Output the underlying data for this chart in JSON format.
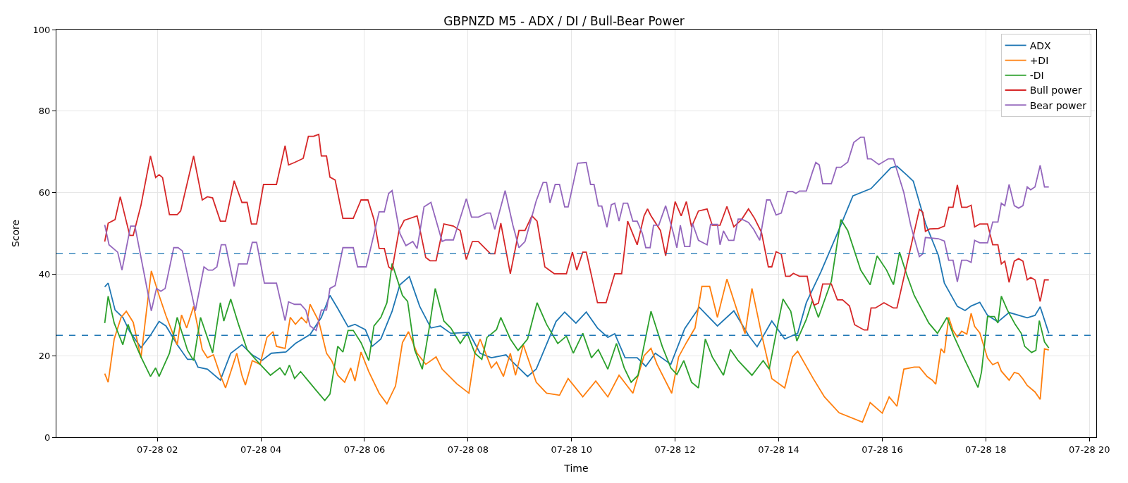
{
  "chart_data": {
    "type": "line",
    "title": "GBPNZD M5 - ADX / DI / Bull-Bear Power",
    "xlabel": "Time",
    "ylabel": "Score",
    "xlim": [
      "--07-28T00:03",
      "--07-28T20:08"
    ],
    "ylim": [
      0,
      100
    ],
    "xticks": [
      {
        "value": "--07-28T02:00",
        "label": "07-28 02"
      },
      {
        "value": "--07-28T04:00",
        "label": "07-28 04"
      },
      {
        "value": "--07-28T06:00",
        "label": "07-28 06"
      },
      {
        "value": "--07-28T08:00",
        "label": "07-28 08"
      },
      {
        "value": "--07-28T10:00",
        "label": "07-28 10"
      },
      {
        "value": "--07-28T12:00",
        "label": "07-28 12"
      },
      {
        "value": "--07-28T14:00",
        "label": "07-28 14"
      },
      {
        "value": "--07-28T16:00",
        "label": "07-28 16"
      },
      {
        "value": "--07-28T18:00",
        "label": "07-28 18"
      },
      {
        "value": "--07-28T20:00",
        "label": "07-28 20"
      }
    ],
    "yticks": [
      0,
      20,
      40,
      60,
      80,
      100
    ],
    "grid": true,
    "legend": "top right",
    "line_style": "solid",
    "ref_lines": [
      {
        "axis": "y",
        "value": 45,
        "color": "#1f77b4",
        "line_style": "dashed"
      },
      {
        "axis": "y",
        "value": 25,
        "color": "#1f77b4",
        "line_style": "dashed"
      }
    ],
    "series": [
      {
        "name": "ADX",
        "color": "#1f77b4",
        "x": [
          "--07-28T00:59",
          "--07-28T01:03",
          "--07-28T01:11",
          "--07-28T01:20",
          "--07-28T01:28",
          "--07-28T01:41",
          "--07-28T01:52",
          "--07-28T02:02",
          "--07-28T02:10",
          "--07-28T02:23",
          "--07-28T02:35",
          "--07-28T02:43",
          "--07-28T02:47",
          "--07-28T02:58",
          "--07-28T03:13",
          "--07-28T03:25",
          "--07-28T03:38",
          "--07-28T03:50",
          "--07-28T04:01",
          "--07-28T04:12",
          "--07-28T04:29",
          "--07-28T04:40",
          "--07-28T04:57",
          "--07-28T05:10",
          "--07-28T05:20",
          "--07-28T05:29",
          "--07-28T05:41",
          "--07-28T05:49",
          "--07-28T06:01",
          "--07-28T06:09",
          "--07-28T06:19",
          "--07-28T06:32",
          "--07-28T06:41",
          "--07-28T06:52",
          "--07-28T07:04",
          "--07-28T07:17",
          "--07-28T07:28",
          "--07-28T07:40",
          "--07-28T08:01",
          "--07-28T08:14",
          "--07-28T08:27",
          "--07-28T08:44",
          "--07-28T08:52",
          "--07-28T09:09",
          "--07-28T09:19",
          "--07-28T09:42",
          "--07-28T09:52",
          "--07-28T10:05",
          "--07-28T10:17",
          "--07-28T10:30",
          "--07-28T10:42",
          "--07-28T10:50",
          "--07-28T11:02",
          "--07-28T11:16",
          "--07-28T11:26",
          "--07-28T11:37",
          "--07-28T11:55",
          "--07-28T12:11",
          "--07-28T12:28",
          "--07-28T12:49",
          "--07-28T13:08",
          "--07-28T13:25",
          "--07-28T13:35",
          "--07-28T13:52",
          "--07-28T14:07",
          "--07-28T14:22",
          "--07-28T14:32",
          "--07-28T14:49",
          "--07-28T15:10",
          "--07-28T15:26",
          "--07-28T15:47",
          "--07-28T16:10",
          "--07-28T16:17",
          "--07-28T16:28",
          "--07-28T16:36",
          "--07-28T16:50",
          "--07-28T17:05",
          "--07-28T17:12",
          "--07-28T17:27",
          "--07-28T17:36",
          "--07-28T17:43",
          "--07-28T17:53",
          "--07-28T18:02",
          "--07-28T18:14",
          "--07-28T18:27",
          "--07-28T18:48",
          "--07-28T18:57",
          "--07-28T19:03",
          "--07-28T19:13"
        ],
        "values": [
          36.9,
          37.8,
          31.2,
          29.4,
          25.9,
          22,
          25,
          28.4,
          27.3,
          22.7,
          19.1,
          19.1,
          17.2,
          16.7,
          14,
          20.6,
          22.7,
          20.2,
          18.8,
          20.6,
          20.9,
          23,
          25.2,
          29.4,
          34.8,
          31.6,
          27.1,
          27.7,
          26.4,
          22.3,
          24.1,
          30.9,
          37.4,
          39.4,
          32.1,
          26.8,
          27.3,
          25.5,
          25.7,
          20.6,
          19.5,
          20.2,
          18.4,
          14.9,
          16.7,
          28.4,
          30.7,
          28,
          30.7,
          26.8,
          24.5,
          25.4,
          19.5,
          19.5,
          17.4,
          20.6,
          17.9,
          26.6,
          31.9,
          27.3,
          31,
          25,
          22.2,
          28.5,
          24.1,
          25.5,
          33,
          40.6,
          51,
          59.2,
          61,
          66.1,
          66.5,
          64.4,
          62.8,
          52.5,
          44.6,
          37.8,
          32.1,
          31.1,
          32.2,
          33.1,
          29.9,
          28.3,
          30.6,
          29.3,
          29.9,
          32,
          25.5
        ]
      },
      {
        "name": "+DI",
        "color": "#ff7f0e",
        "x": [
          "--07-28T00:59",
          "--07-28T01:03",
          "--07-28T01:10",
          "--07-28T01:18",
          "--07-28T01:24",
          "--07-28T01:32",
          "--07-28T01:41",
          "--07-28T01:47",
          "--07-28T01:53",
          "--07-28T02:02",
          "--07-28T02:10",
          "--07-28T02:23",
          "--07-28T02:28",
          "--07-28T02:34",
          "--07-28T02:42",
          "--07-28T02:52",
          "--07-28T02:58",
          "--07-28T03:05",
          "--07-28T03:13",
          "--07-28T03:19",
          "--07-28T03:32",
          "--07-28T03:38",
          "--07-28T03:42",
          "--07-28T03:50",
          "--07-28T03:59",
          "--07-28T04:07",
          "--07-28T04:14",
          "--07-28T04:18",
          "--07-28T04:28",
          "--07-28T04:34",
          "--07-28T04:40",
          "--07-28T04:47",
          "--07-28T04:53",
          "--07-28T04:57",
          "--07-28T05:07",
          "--07-28T05:16",
          "--07-28T05:22",
          "--07-28T05:29",
          "--07-28T05:37",
          "--07-28T05:44",
          "--07-28T05:49",
          "--07-28T05:56",
          "--07-28T06:05",
          "--07-28T06:17",
          "--07-28T06:26",
          "--07-28T06:36",
          "--07-28T06:44",
          "--07-28T06:51",
          "--07-28T07:01",
          "--07-28T07:11",
          "--07-28T07:23",
          "--07-28T07:30",
          "--07-28T07:47",
          "--07-28T08:01",
          "--07-28T08:08",
          "--07-28T08:14",
          "--07-28T08:27",
          "--07-28T08:33",
          "--07-28T08:41",
          "--07-28T08:49",
          "--07-28T08:55",
          "--07-28T09:04",
          "--07-28T09:19",
          "--07-28T09:31",
          "--07-28T09:46",
          "--07-28T09:56",
          "--07-28T10:13",
          "--07-28T10:28",
          "--07-28T10:42",
          "--07-28T10:55",
          "--07-28T11:11",
          "--07-28T11:24",
          "--07-28T11:32",
          "--07-28T11:39",
          "--07-28T11:56",
          "--07-28T12:04",
          "--07-28T12:13",
          "--07-28T12:23",
          "--07-28T12:31",
          "--07-28T12:40",
          "--07-28T12:49",
          "--07-28T13:00",
          "--07-28T13:13",
          "--07-28T13:21",
          "--07-28T13:29",
          "--07-28T13:40",
          "--07-28T13:52",
          "--07-28T14:07",
          "--07-28T14:16",
          "--07-28T14:22",
          "--07-28T14:40",
          "--07-28T14:53",
          "--07-28T15:10",
          "--07-28T15:37",
          "--07-28T15:46",
          "--07-28T16:00",
          "--07-28T16:08",
          "--07-28T16:17",
          "--07-28T16:25",
          "--07-28T16:37",
          "--07-28T16:43",
          "--07-28T16:52",
          "--07-28T16:58",
          "--07-28T17:02",
          "--07-28T17:08",
          "--07-28T17:12",
          "--07-28T17:17",
          "--07-28T17:22",
          "--07-28T17:27",
          "--07-28T17:32",
          "--07-28T17:38",
          "--07-28T17:43",
          "--07-28T17:47",
          "--07-28T17:53",
          "--07-28T18:02",
          "--07-28T18:08",
          "--07-28T18:14",
          "--07-28T18:18",
          "--07-28T18:27",
          "--07-28T18:33",
          "--07-28T18:38",
          "--07-28T18:43",
          "--07-28T18:48",
          "--07-28T18:57",
          "--07-28T19:03",
          "--07-28T19:08",
          "--07-28T19:13"
        ],
        "values": [
          15.6,
          13.5,
          24.1,
          29.4,
          30.9,
          28.2,
          19.5,
          30.3,
          40.8,
          34.8,
          29.8,
          22.7,
          30,
          26.8,
          32.1,
          21.5,
          19.5,
          20.2,
          15.2,
          12.1,
          20.6,
          15.2,
          12.8,
          18.8,
          17.9,
          24.5,
          25.9,
          22.3,
          21.8,
          29.4,
          27.7,
          29.4,
          28,
          32.6,
          28.5,
          20.6,
          18.8,
          15.2,
          13.5,
          17,
          13.8,
          20.9,
          16.1,
          10.8,
          8.2,
          12.6,
          23.2,
          25.9,
          20.6,
          17.9,
          19.7,
          16.7,
          13.1,
          10.8,
          20.6,
          24.1,
          17,
          18.4,
          14.9,
          20.6,
          15.2,
          22.7,
          13.5,
          10.8,
          10.3,
          14.4,
          9.9,
          13.8,
          9.9,
          15.2,
          10.8,
          20,
          21.8,
          17.9,
          10.8,
          19.7,
          23.2,
          26.8,
          37,
          37,
          29.4,
          38.8,
          30.3,
          25.4,
          36.5,
          25.4,
          14.4,
          12.1,
          19.7,
          21.1,
          14.4,
          9.9,
          6,
          3.7,
          8.5,
          5.9,
          9.9,
          7.6,
          16.7,
          17.2,
          17.2,
          14.9,
          14,
          13,
          21.7,
          20.7,
          29.4,
          26.2,
          24.6,
          26,
          25.3,
          30.4,
          27.2,
          25.6,
          19.4,
          17.8,
          18.4,
          16.2,
          14,
          15.9,
          15.6,
          14.3,
          12.7,
          11.1,
          9.3,
          21.7,
          21.4
        ]
      },
      {
        "name": "-DI",
        "color": "#2ca02c",
        "x": [
          "--07-28T00:59",
          "--07-28T01:03",
          "--07-28T01:10",
          "--07-28T01:20",
          "--07-28T01:26",
          "--07-28T01:32",
          "--07-28T01:41",
          "--07-28T01:52",
          "--07-28T01:58",
          "--07-28T02:02",
          "--07-28T02:14",
          "--07-28T02:23",
          "--07-28T02:35",
          "--07-28T02:42",
          "--07-28T02:50",
          "--07-28T03:04",
          "--07-28T03:13",
          "--07-28T03:17",
          "--07-28T03:25",
          "--07-28T03:34",
          "--07-28T03:44",
          "--07-28T03:55",
          "--07-28T04:11",
          "--07-28T04:22",
          "--07-28T04:28",
          "--07-28T04:33",
          "--07-28T04:39",
          "--07-28T04:46",
          "--07-28T04:55",
          "--07-28T05:04",
          "--07-28T05:14",
          "--07-28T05:20",
          "--07-28T05:29",
          "--07-28T05:35",
          "--07-28T05:41",
          "--07-28T05:47",
          "--07-28T05:56",
          "--07-28T06:05",
          "--07-28T06:11",
          "--07-28T06:19",
          "--07-28T06:26",
          "--07-28T06:32",
          "--07-28T06:44",
          "--07-28T06:50",
          "--07-28T06:58",
          "--07-28T07:07",
          "--07-28T07:15",
          "--07-28T07:22",
          "--07-28T07:32",
          "--07-28T07:40",
          "--07-28T07:51",
          "--07-28T07:59",
          "--07-28T08:08",
          "--07-28T08:16",
          "--07-28T08:22",
          "--07-28T08:33",
          "--07-28T08:38",
          "--07-28T08:49",
          "--07-28T08:58",
          "--07-28T09:09",
          "--07-28T09:20",
          "--07-28T09:31",
          "--07-28T09:44",
          "--07-28T09:54",
          "--07-28T10:02",
          "--07-28T10:13",
          "--07-28T10:23",
          "--07-28T10:31",
          "--07-28T10:42",
          "--07-28T10:52",
          "--07-28T11:01",
          "--07-28T11:09",
          "--07-28T11:17",
          "--07-28T11:32",
          "--07-28T11:45",
          "--07-28T11:55",
          "--07-28T12:02",
          "--07-28T12:10",
          "--07-28T12:19",
          "--07-28T12:27",
          "--07-28T12:35",
          "--07-28T12:43",
          "--07-28T12:56",
          "--07-28T13:04",
          "--07-28T13:13",
          "--07-28T13:29",
          "--07-28T13:42",
          "--07-28T13:49",
          "--07-28T13:59",
          "--07-28T14:05",
          "--07-28T14:14",
          "--07-28T14:21",
          "--07-28T14:32",
          "--07-28T14:39",
          "--07-28T14:46",
          "--07-28T15:01",
          "--07-28T15:12",
          "--07-28T15:20",
          "--07-28T15:35",
          "--07-28T15:46",
          "--07-28T15:54",
          "--07-28T16:05",
          "--07-28T16:13",
          "--07-28T16:20",
          "--07-28T16:28",
          "--07-28T16:37",
          "--07-28T16:54",
          "--07-28T17:04",
          "--07-28T17:15",
          "--07-28T17:23",
          "--07-28T17:36",
          "--07-28T17:51",
          "--07-28T17:55",
          "--07-28T18:02",
          "--07-28T18:10",
          "--07-28T18:14",
          "--07-28T18:18",
          "--07-28T18:25",
          "--07-28T18:34",
          "--07-28T18:41",
          "--07-28T18:45",
          "--07-28T18:53",
          "--07-28T18:58",
          "--07-28T19:02",
          "--07-28T19:08",
          "--07-28T19:13"
        ],
        "values": [
          28,
          34.6,
          28,
          22.7,
          27.7,
          24.1,
          19.7,
          14.9,
          17,
          14.9,
          20.6,
          29.4,
          21.3,
          18.8,
          29.4,
          20.7,
          33,
          28.5,
          33.9,
          27.7,
          21.5,
          18.8,
          15.2,
          17,
          15.2,
          17.7,
          14.4,
          16.1,
          13.8,
          11.5,
          9,
          10.6,
          22.3,
          20.9,
          26.2,
          26.2,
          23.2,
          18.8,
          27.3,
          29.4,
          33,
          42.6,
          34.8,
          33.3,
          21.5,
          16.7,
          26.8,
          36.5,
          28.5,
          26.8,
          23,
          25.5,
          20.6,
          19.1,
          24.5,
          26.4,
          29.4,
          24.1,
          21.3,
          24.1,
          33,
          27.7,
          23,
          24.8,
          20.6,
          25.5,
          19.5,
          21.5,
          16.7,
          23,
          17,
          13.5,
          15.2,
          30.9,
          22.3,
          17,
          15.4,
          18.8,
          13.5,
          12.1,
          24.1,
          19.7,
          15.2,
          21.5,
          18.8,
          15.2,
          18.8,
          16.7,
          27.7,
          33.9,
          30.9,
          23.6,
          28.9,
          33.5,
          29.4,
          38.3,
          53.4,
          50.7,
          41,
          37.4,
          44.5,
          41,
          37.4,
          45.4,
          40.1,
          34.8,
          28,
          25.5,
          29.4,
          24.8,
          18.8,
          12.2,
          16,
          29.6,
          29.6,
          28,
          34.6,
          31.2,
          27.7,
          25.5,
          22.3,
          20.8,
          21.3,
          28.6,
          23.4,
          21.9
        ]
      },
      {
        "name": "Bull power",
        "color": "#d62728",
        "x": [
          "--07-28T00:59",
          "--07-28T01:03",
          "--07-28T01:11",
          "--07-28T01:17",
          "--07-28T01:28",
          "--07-28T01:32",
          "--07-28T01:41",
          "--07-28T01:52",
          "--07-28T01:58",
          "--07-28T02:02",
          "--07-28T02:06",
          "--07-28T02:14",
          "--07-28T02:23",
          "--07-28T02:27",
          "--07-28T02:42",
          "--07-28T02:52",
          "--07-28T02:58",
          "--07-28T03:04",
          "--07-28T03:13",
          "--07-28T03:19",
          "--07-28T03:29",
          "--07-28T03:38",
          "--07-28T03:44",
          "--07-28T03:49",
          "--07-28T03:55",
          "--07-28T04:03",
          "--07-28T04:18",
          "--07-28T04:28",
          "--07-28T04:32",
          "--07-28T04:39",
          "--07-28T04:49",
          "--07-28T04:55",
          "--07-28T05:01",
          "--07-28T05:07",
          "--07-28T05:10",
          "--07-28T05:16",
          "--07-28T05:20",
          "--07-28T05:26",
          "--07-28T05:35",
          "--07-28T05:47",
          "--07-28T05:56",
          "--07-28T06:04",
          "--07-28T06:11",
          "--07-28T06:17",
          "--07-28T06:23",
          "--07-28T06:28",
          "--07-28T06:32",
          "--07-28T06:40",
          "--07-28T06:46",
          "--07-28T07:01",
          "--07-28T07:11",
          "--07-28T07:16",
          "--07-28T07:23",
          "--07-28T07:32",
          "--07-28T07:43",
          "--07-28T07:51",
          "--07-28T07:58",
          "--07-28T08:05",
          "--07-28T08:12",
          "--07-28T08:26",
          "--07-28T08:31",
          "--07-28T08:38",
          "--07-28T08:49",
          "--07-28T08:59",
          "--07-28T09:06",
          "--07-28T09:14",
          "--07-28T09:20",
          "--07-28T09:29",
          "--07-28T09:40",
          "--07-28T09:54",
          "--07-28T10:01",
          "--07-28T10:06",
          "--07-28T10:13",
          "--07-28T10:17",
          "--07-28T10:30",
          "--07-28T10:40",
          "--07-28T10:50",
          "--07-28T10:58",
          "--07-28T11:02",
          "--07-28T11:05",
          "--07-28T11:16",
          "--07-28T11:24",
          "--07-28T11:28",
          "--07-28T11:32",
          "--07-28T11:43",
          "--07-28T11:49",
          "--07-28T12:00",
          "--07-28T12:07",
          "--07-28T12:13",
          "--07-28T12:19",
          "--07-28T12:27",
          "--07-28T12:37",
          "--07-28T12:43",
          "--07-28T12:52",
          "--07-28T13:00",
          "--07-28T13:08",
          "--07-28T13:17",
          "--07-28T13:25",
          "--07-28T13:32",
          "--07-28T13:40",
          "--07-28T13:48",
          "--07-28T13:52",
          "--07-28T13:57",
          "--07-28T14:03",
          "--07-28T14:08",
          "--07-28T14:13",
          "--07-28T14:17",
          "--07-28T14:24",
          "--07-28T14:33",
          "--07-28T14:37",
          "--07-28T14:41",
          "--07-28T14:46",
          "--07-28T14:51",
          "--07-28T15:01",
          "--07-28T15:08",
          "--07-28T15:14",
          "--07-28T15:22",
          "--07-28T15:28",
          "--07-28T15:39",
          "--07-28T15:43",
          "--07-28T15:47",
          "--07-28T15:52",
          "--07-28T16:02",
          "--07-28T16:13",
          "--07-28T16:17",
          "--07-28T16:43",
          "--07-28T16:47",
          "--07-28T16:50",
          "--07-28T16:55",
          "--07-28T17:05",
          "--07-28T17:12",
          "--07-28T17:17",
          "--07-28T17:22",
          "--07-28T17:27",
          "--07-28T17:32",
          "--07-28T17:38",
          "--07-28T17:43",
          "--07-28T17:47",
          "--07-28T17:53",
          "--07-28T18:02",
          "--07-28T18:08",
          "--07-28T18:14",
          "--07-28T18:18",
          "--07-28T18:22",
          "--07-28T18:27",
          "--07-28T18:33",
          "--07-28T18:38",
          "--07-28T18:43",
          "--07-28T18:48",
          "--07-28T18:52",
          "--07-28T18:57",
          "--07-28T19:03",
          "--07-28T19:08",
          "--07-28T19:13"
        ],
        "values": [
          48,
          52.5,
          53.4,
          59,
          49.5,
          49.5,
          56.9,
          69,
          63.7,
          64.4,
          63.7,
          54.6,
          54.6,
          55.5,
          69,
          58.2,
          59,
          58.7,
          53,
          53,
          62.9,
          57.6,
          57.6,
          52.3,
          52.3,
          62,
          62,
          71.5,
          66.8,
          67.4,
          68.4,
          73.8,
          73.8,
          74.3,
          69,
          69,
          63.8,
          63.1,
          53.7,
          53.7,
          58.2,
          58.2,
          53.4,
          46.3,
          46.3,
          41.8,
          41.1,
          50.7,
          53.2,
          54.3,
          44.1,
          43.3,
          43.3,
          52.3,
          51.8,
          50.7,
          43.6,
          48,
          48,
          45,
          45,
          52.5,
          40.1,
          50.7,
          50.7,
          54.3,
          53,
          41.8,
          40.1,
          40.1,
          45.4,
          41,
          45.4,
          45.4,
          33,
          33,
          40.1,
          40.1,
          47.2,
          53,
          47.2,
          54.3,
          56,
          54.3,
          50.7,
          44.5,
          57.8,
          54.3,
          57.8,
          51.6,
          55.5,
          56,
          52,
          52,
          56.6,
          51.6,
          53.4,
          56,
          53.7,
          50.3,
          41.8,
          41.8,
          45.5,
          44.9,
          39.5,
          39.5,
          40.2,
          39.5,
          39.5,
          34.9,
          32.4,
          32.9,
          37.6,
          37.6,
          33.7,
          33.7,
          32.2,
          27.6,
          26.3,
          26.3,
          31.7,
          31.7,
          33,
          31.7,
          31.7,
          55.9,
          55.2,
          50.5,
          51.1,
          51.2,
          51.8,
          56.4,
          56.4,
          61.9,
          56.4,
          56.4,
          56.9,
          51.6,
          52.3,
          52.3,
          47.2,
          47.2,
          42.5,
          43.2,
          38,
          43.2,
          43.8,
          43.2,
          38.6,
          39.2,
          38.6,
          33.3,
          38.6,
          38.6
        ]
      },
      {
        "name": "Bear power",
        "color": "#9467bd",
        "x": [
          "--07-28T00:59",
          "--07-28T01:04",
          "--07-28T01:14",
          "--07-28T01:19",
          "--07-28T01:29",
          "--07-28T01:34",
          "--07-28T01:53",
          "--07-28T01:59",
          "--07-28T02:04",
          "--07-28T02:09",
          "--07-28T02:19",
          "--07-28T02:24",
          "--07-28T02:29",
          "--07-28T02:44",
          "--07-28T02:54",
          "--07-28T02:59",
          "--07-28T03:04",
          "--07-28T03:09",
          "--07-28T03:14",
          "--07-28T03:19",
          "--07-28T03:29",
          "--07-28T03:34",
          "--07-28T03:44",
          "--07-28T03:50",
          "--07-28T03:55",
          "--07-28T04:04",
          "--07-28T04:18",
          "--07-28T04:28",
          "--07-28T04:32",
          "--07-28T04:39",
          "--07-28T04:46",
          "--07-28T04:52",
          "--07-28T04:57",
          "--07-28T05:04",
          "--07-28T05:10",
          "--07-28T05:16",
          "--07-28T05:20",
          "--07-28T05:26",
          "--07-28T05:35",
          "--07-28T05:47",
          "--07-28T05:52",
          "--07-28T06:02",
          "--07-28T06:09",
          "--07-28T06:17",
          "--07-28T06:23",
          "--07-28T06:28",
          "--07-28T06:32",
          "--07-28T06:41",
          "--07-28T06:48",
          "--07-28T06:56",
          "--07-28T07:01",
          "--07-28T07:09",
          "--07-28T07:17",
          "--07-28T07:30",
          "--07-28T07:34",
          "--07-28T07:43",
          "--07-28T07:58",
          "--07-28T08:04",
          "--07-28T08:12",
          "--07-28T08:22",
          "--07-28T08:26",
          "--07-28T08:31",
          "--07-28T08:43",
          "--07-28T08:52",
          "--07-28T08:59",
          "--07-28T09:06",
          "--07-28T09:19",
          "--07-28T09:27",
          "--07-28T09:31",
          "--07-28T09:35",
          "--07-28T09:41",
          "--07-28T09:46",
          "--07-28T09:52",
          "--07-28T09:56",
          "--07-28T10:07",
          "--07-28T10:17",
          "--07-28T10:22",
          "--07-28T10:26",
          "--07-28T10:31",
          "--07-28T10:35",
          "--07-28T10:41",
          "--07-28T10:46",
          "--07-28T10:50",
          "--07-28T10:55",
          "--07-28T11:00",
          "--07-28T11:05",
          "--07-28T11:11",
          "--07-28T11:16",
          "--07-28T11:22",
          "--07-28T11:26",
          "--07-28T11:31",
          "--07-28T11:35",
          "--07-28T11:41",
          "--07-28T11:49",
          "--07-28T11:58",
          "--07-28T12:02",
          "--07-28T12:06",
          "--07-28T12:11",
          "--07-28T12:17",
          "--07-28T12:20",
          "--07-28T12:27",
          "--07-28T12:37",
          "--07-28T12:41",
          "--07-28T12:49",
          "--07-28T12:52",
          "--07-28T12:56",
          "--07-28T13:02",
          "--07-28T13:08",
          "--07-28T13:13",
          "--07-28T13:17",
          "--07-28T13:25",
          "--07-28T13:31",
          "--07-28T13:38",
          "--07-28T13:46",
          "--07-28T13:50",
          "--07-28T13:57",
          "--07-28T14:03",
          "--07-28T14:10",
          "--07-28T14:16",
          "--07-28T14:20",
          "--07-28T14:24",
          "--07-28T14:32",
          "--07-28T14:39",
          "--07-28T14:43",
          "--07-28T14:47",
          "--07-28T14:51",
          "--07-28T15:01",
          "--07-28T15:07",
          "--07-28T15:12",
          "--07-28T15:20",
          "--07-28T15:27",
          "--07-28T15:35",
          "--07-28T15:39",
          "--07-28T15:43",
          "--07-28T15:47",
          "--07-28T15:56",
          "--07-28T16:07",
          "--07-28T16:13",
          "--07-28T16:25",
          "--07-28T16:33",
          "--07-28T16:43",
          "--07-28T16:47",
          "--07-28T16:50",
          "--07-28T17:05",
          "--07-28T17:12",
          "--07-28T17:17",
          "--07-28T17:22",
          "--07-28T17:27",
          "--07-28T17:32",
          "--07-28T17:38",
          "--07-28T17:43",
          "--07-28T17:47",
          "--07-28T17:53",
          "--07-28T18:02",
          "--07-28T18:08",
          "--07-28T18:14",
          "--07-28T18:18",
          "--07-28T18:22",
          "--07-28T18:27",
          "--07-28T18:33",
          "--07-28T18:38",
          "--07-28T18:43",
          "--07-28T18:48",
          "--07-28T18:52",
          "--07-28T18:57",
          "--07-28T19:03",
          "--07-28T19:08",
          "--07-28T19:13"
        ],
        "values": [
          52.1,
          47.2,
          45.4,
          41,
          51.8,
          51.8,
          31,
          36.5,
          35.8,
          36.5,
          46.5,
          46.5,
          45.7,
          31,
          41.8,
          41,
          41,
          41.8,
          47.2,
          47.2,
          37,
          42.5,
          42.5,
          47.8,
          47.8,
          37.8,
          37.8,
          28.6,
          33.2,
          32.6,
          32.6,
          31.2,
          27.3,
          26.2,
          31.2,
          31.2,
          36.5,
          37.2,
          46.5,
          46.5,
          41.8,
          41.8,
          48,
          55.3,
          55.3,
          59.8,
          60.5,
          50,
          47,
          48,
          46.3,
          56.5,
          57.6,
          48,
          48.4,
          48.4,
          58.5,
          54,
          54,
          55,
          55,
          51,
          60.5,
          52,
          46.5,
          48,
          58,
          62.5,
          62.5,
          57.5,
          62,
          62,
          56.5,
          56.5,
          67.2,
          67.4,
          62,
          62,
          56.7,
          56.7,
          51.5,
          57,
          57.4,
          53,
          57.4,
          57.4,
          53,
          53,
          50,
          46.5,
          46.5,
          52,
          52,
          56.8,
          50,
          46.5,
          52,
          46.8,
          46.8,
          52.5,
          48.3,
          47.2,
          52.2,
          52.2,
          47.2,
          50.6,
          48.3,
          48.3,
          53.5,
          53.5,
          52.7,
          51,
          48.3,
          58.2,
          58.2,
          54.5,
          55,
          60.3,
          60.3,
          59.8,
          60.4,
          60.4,
          65,
          67.4,
          66.8,
          62.2,
          62.2,
          66.2,
          66.2,
          67.5,
          72.3,
          73.6,
          73.6,
          68.3,
          68.3,
          66.9,
          68.3,
          68.3,
          60,
          52,
          44.3,
          45,
          49,
          48.7,
          48.1,
          43.4,
          43.4,
          38.1,
          43.4,
          43.4,
          42.9,
          48.3,
          47.7,
          47.7,
          52.8,
          52.8,
          57.4,
          56.8,
          62,
          56.8,
          56.2,
          56.8,
          61.4,
          60.7,
          61.4,
          66.7,
          61.4,
          61.4
        ]
      }
    ]
  }
}
